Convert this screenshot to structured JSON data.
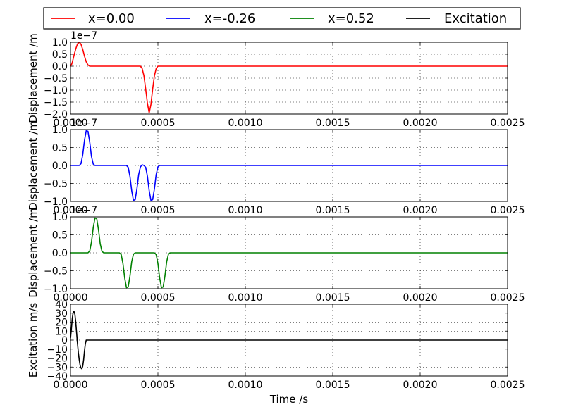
{
  "legend": {
    "placement": "top-center",
    "entries": [
      {
        "label": "x=0.00",
        "color": "#ff0000"
      },
      {
        "label": "x=-0.26",
        "color": "#0000ff"
      },
      {
        "label": "x=0.52",
        "color": "#008000"
      },
      {
        "label": "Excitation",
        "color": "#000000"
      }
    ]
  },
  "xlabel": "Time /s",
  "chart_data": [
    {
      "type": "line",
      "ylabel": "Displacement /m",
      "offset_text": "1e−7",
      "xlim": [
        0,
        0.0025
      ],
      "ylim": [
        -2.0,
        1.0
      ],
      "xticks": [
        "0.0000",
        "0.0005",
        "0.0010",
        "0.0015",
        "0.0020",
        "0.0025"
      ],
      "yticks": [
        "−2.0",
        "−1.5",
        "−1.0",
        "−0.5",
        "0.0",
        "0.5",
        "1.0"
      ],
      "grid": true,
      "series": [
        {
          "name": "x=0.00",
          "color": "#ff0000",
          "x": [
            0,
            5e-06,
            1e-05,
            1.5e-05,
            2e-05,
            3e-05,
            4e-05,
            5e-05,
            6e-05,
            7e-05,
            8e-05,
            9e-05,
            0.0001,
            0.00011,
            0.00012,
            0.0004,
            0.00041,
            0.00042,
            0.00043,
            0.00044,
            0.00045,
            0.00046,
            0.00047,
            0.00048,
            0.00049,
            0.0005,
            0.0025
          ],
          "y": [
            0,
            0.05,
            0.15,
            0.3,
            0.45,
            0.72,
            0.93,
            1.0,
            0.92,
            0.7,
            0.42,
            0.18,
            0.05,
            0.0,
            0,
            0,
            -0.1,
            -0.4,
            -0.95,
            -1.55,
            -1.95,
            -1.6,
            -0.95,
            -0.4,
            -0.1,
            0,
            0
          ]
        }
      ]
    },
    {
      "type": "line",
      "ylabel": "Displacement /m",
      "offset_text": "1e−7",
      "xlim": [
        0,
        0.0025
      ],
      "ylim": [
        -1.0,
        1.0
      ],
      "xticks": [
        "0.0000",
        "0.0005",
        "0.0010",
        "0.0015",
        "0.0020",
        "0.0025"
      ],
      "yticks": [
        "−1.0",
        "−0.5",
        "0.0",
        "0.5",
        "1.0"
      ],
      "grid": true,
      "series": [
        {
          "name": "x=-0.26",
          "color": "#0000ff",
          "x": [
            0,
            5e-05,
            6e-05,
            7e-05,
            8e-05,
            9e-05,
            0.0001,
            0.00011,
            0.00012,
            0.00013,
            0.00014,
            0.00015,
            0.00032,
            0.00033,
            0.00034,
            0.00035,
            0.00036,
            0.00037,
            0.00038,
            0.00039,
            0.0004,
            0.00041,
            0.00042,
            0.00043,
            0.00044,
            0.00045,
            0.00046,
            0.00047,
            0.00048,
            0.00049,
            0.0005,
            0.00051,
            0.00052,
            0.00053,
            0.00054,
            0.0025
          ],
          "y": [
            0,
            0,
            0.05,
            0.3,
            0.7,
            0.97,
            0.95,
            0.65,
            0.25,
            0.04,
            0,
            0,
            0,
            -0.05,
            -0.3,
            -0.7,
            -0.97,
            -0.95,
            -0.65,
            -0.25,
            -0.04,
            0.02,
            0,
            -0.05,
            -0.3,
            -0.7,
            -0.97,
            -0.95,
            -0.65,
            -0.25,
            -0.04,
            0,
            0,
            0,
            0,
            0
          ]
        }
      ]
    },
    {
      "type": "line",
      "ylabel": "Displacement /m",
      "offset_text": "1e−7",
      "xlim": [
        0,
        0.0025
      ],
      "ylim": [
        -1.0,
        1.0
      ],
      "xticks": [
        "0.0000",
        "0.0005",
        "0.0010",
        "0.0015",
        "0.0020",
        "0.0025"
      ],
      "yticks": [
        "−1.0",
        "−0.5",
        "0.0",
        "0.5",
        "1.0"
      ],
      "grid": true,
      "series": [
        {
          "name": "x=0.52",
          "color": "#008000",
          "x": [
            0,
            0.0001,
            0.00011,
            0.00012,
            0.00013,
            0.00014,
            0.00015,
            0.00016,
            0.00017,
            0.00018,
            0.00019,
            0.0002,
            0.00028,
            0.00029,
            0.0003,
            0.00031,
            0.00032,
            0.00033,
            0.00034,
            0.00035,
            0.00036,
            0.00037,
            0.00038,
            0.00048,
            0.00049,
            0.0005,
            0.00051,
            0.00052,
            0.00053,
            0.00054,
            0.00055,
            0.00056,
            0.00057,
            0.00058,
            0.0025
          ],
          "y": [
            0,
            0,
            0.05,
            0.3,
            0.7,
            0.97,
            0.95,
            0.65,
            0.25,
            0.04,
            0,
            0,
            0,
            -0.05,
            -0.3,
            -0.7,
            -0.97,
            -0.95,
            -0.65,
            -0.25,
            -0.04,
            0,
            0,
            0,
            -0.05,
            -0.3,
            -0.7,
            -0.97,
            -0.95,
            -0.65,
            -0.25,
            -0.04,
            0,
            0,
            0
          ]
        }
      ]
    },
    {
      "type": "line",
      "ylabel": "Excitation m/s",
      "xlim": [
        0,
        0.0025
      ],
      "ylim": [
        -40,
        40
      ],
      "xticks": [
        "0.0000",
        "0.0005",
        "0.0010",
        "0.0015",
        "0.0020",
        "0.0025"
      ],
      "yticks": [
        "−40",
        "−30",
        "−20",
        "−10",
        "0",
        "10",
        "20",
        "30",
        "40"
      ],
      "grid": true,
      "series": [
        {
          "name": "Excitation",
          "color": "#000000",
          "x": [
            0,
            5e-06,
            1e-05,
            1.5e-05,
            2e-05,
            2.5e-05,
            3e-05,
            3.5e-05,
            4e-05,
            4.5e-05,
            5e-05,
            5.5e-05,
            6e-05,
            6.5e-05,
            7e-05,
            7.5e-05,
            8e-05,
            8.5e-05,
            9e-05,
            9.5e-05,
            0.0001,
            0.00011,
            0.0025
          ],
          "y": [
            2,
            12,
            24,
            30.5,
            32,
            29,
            20,
            8,
            -4,
            -14,
            -22,
            -28,
            -31,
            -32,
            -29,
            -22,
            -12,
            -4,
            0,
            0,
            0,
            0,
            0
          ]
        }
      ]
    }
  ]
}
